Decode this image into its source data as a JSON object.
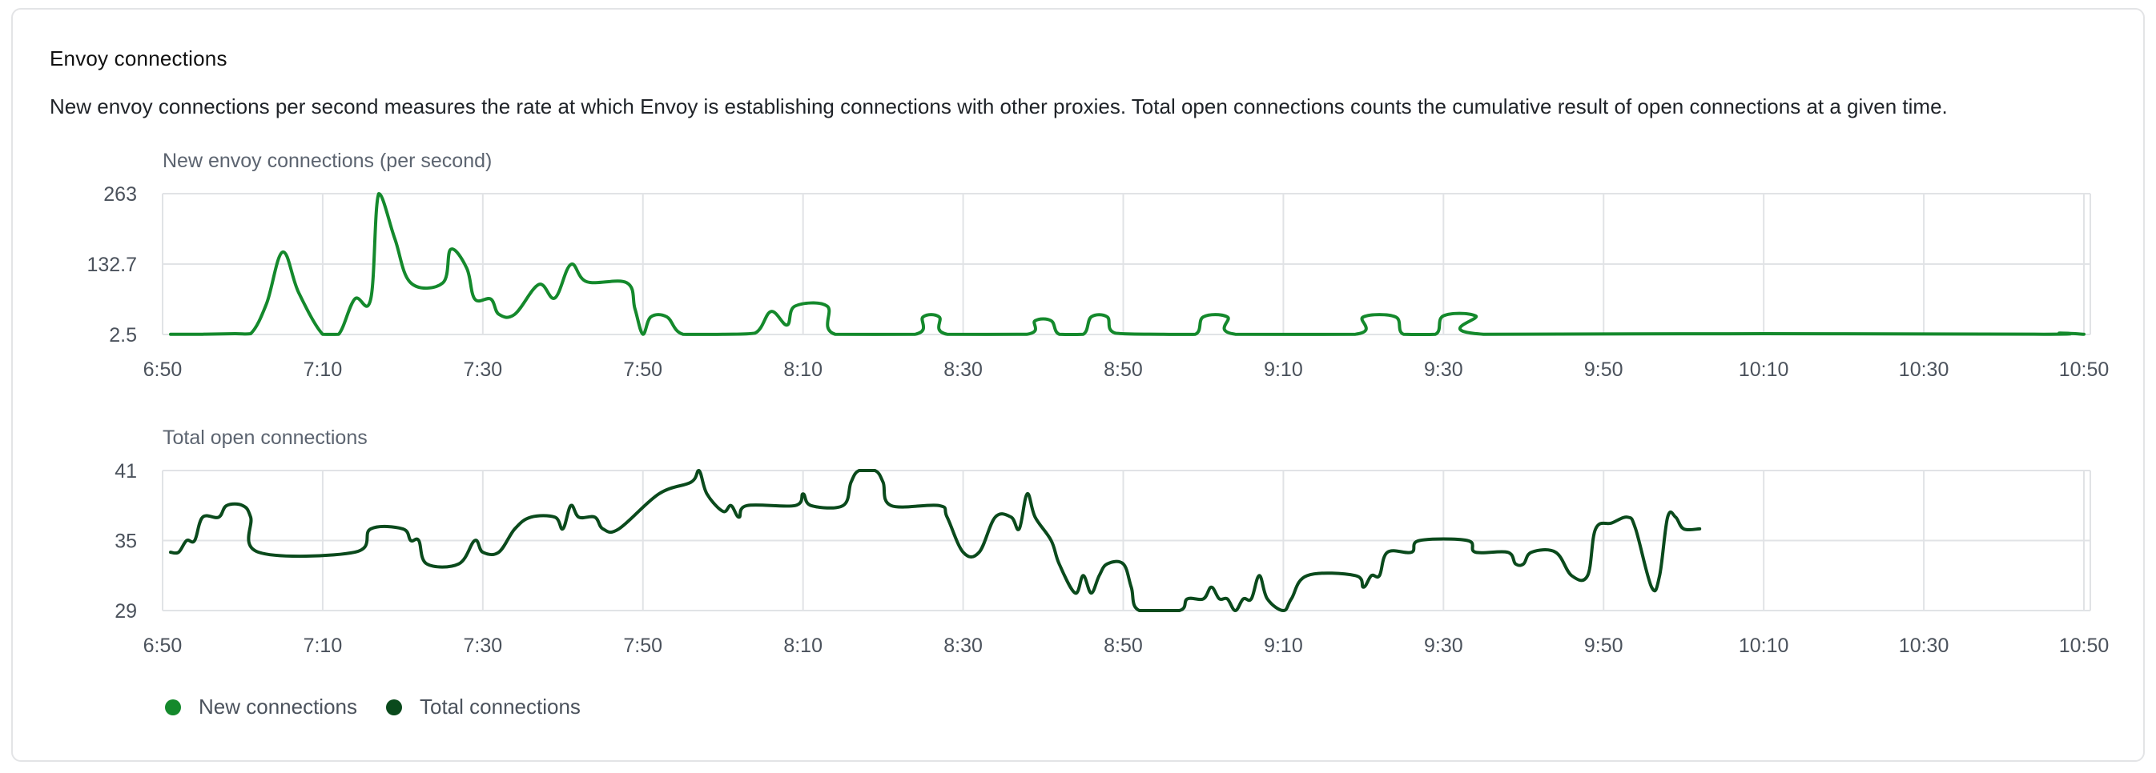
{
  "card": {
    "title": "Envoy connections",
    "description": "New envoy connections per second measures the rate at which Envoy is establishing connections with other proxies. Total open connections counts the cumulative result of open connections at a given time."
  },
  "colors": {
    "new": "#14892c",
    "total": "#0a4a1c",
    "grid": "#e1e3e6"
  },
  "legend": [
    {
      "label": "New connections",
      "color": "#14892c"
    },
    {
      "label": "Total connections",
      "color": "#0a4a1c"
    }
  ],
  "chart_data": [
    {
      "type": "line",
      "title": "New envoy connections (per second)",
      "series_color": "#14892c",
      "xlabel": "",
      "ylabel": "",
      "xlim": [
        "6:50",
        "10:50"
      ],
      "x_ticks": [
        "6:50",
        "7:10",
        "7:30",
        "7:50",
        "8:10",
        "8:30",
        "8:50",
        "9:10",
        "9:30",
        "9:50",
        "10:10",
        "10:30",
        "10:50"
      ],
      "y_ticks": [
        "2.5",
        "132.7",
        "263"
      ],
      "ylim": [
        2.5,
        263
      ],
      "grid": true,
      "points": [
        [
          "6:51",
          3
        ],
        [
          "6:55",
          3
        ],
        [
          "6:59",
          4
        ],
        [
          "7:01",
          4
        ],
        [
          "7:03",
          60
        ],
        [
          "7:05",
          155
        ],
        [
          "7:07",
          80
        ],
        [
          "7:10",
          3
        ],
        [
          "7:12",
          3
        ],
        [
          "7:14",
          68
        ],
        [
          "7:16",
          68
        ],
        [
          "7:17",
          263
        ],
        [
          "7:19",
          180
        ],
        [
          "7:21",
          98
        ],
        [
          "7:25",
          98
        ],
        [
          "7:26",
          160
        ],
        [
          "7:28",
          125
        ],
        [
          "7:29",
          68
        ],
        [
          "7:31",
          68
        ],
        [
          "7:32",
          40
        ],
        [
          "7:34",
          40
        ],
        [
          "7:37",
          95
        ],
        [
          "7:39",
          70
        ],
        [
          "7:41",
          132
        ],
        [
          "7:43",
          100
        ],
        [
          "7:48",
          98
        ],
        [
          "7:49",
          50
        ],
        [
          "7:50",
          3
        ],
        [
          "7:51",
          35
        ],
        [
          "7:53",
          35
        ],
        [
          "7:55",
          3
        ],
        [
          "8:00",
          3
        ],
        [
          "8:04",
          5
        ],
        [
          "8:06",
          45
        ],
        [
          "8:08",
          20
        ],
        [
          "8:09",
          55
        ],
        [
          "8:13",
          55
        ],
        [
          "8:14",
          3
        ],
        [
          "8:24",
          3
        ],
        [
          "8:25",
          35
        ],
        [
          "8:27",
          35
        ],
        [
          "8:28",
          3
        ],
        [
          "8:38",
          3
        ],
        [
          "8:39",
          28
        ],
        [
          "8:41",
          28
        ],
        [
          "8:42",
          3
        ],
        [
          "8:45",
          3
        ],
        [
          "8:46",
          35
        ],
        [
          "8:48",
          35
        ],
        [
          "8:49",
          5
        ],
        [
          "8:55",
          3
        ],
        [
          "8:59",
          3
        ],
        [
          "9:00",
          35
        ],
        [
          "9:03",
          35
        ],
        [
          "9:04",
          3
        ],
        [
          "9:19",
          3
        ],
        [
          "9:20",
          35
        ],
        [
          "9:24",
          35
        ],
        [
          "9:25",
          3
        ],
        [
          "9:29",
          3
        ],
        [
          "9:30",
          37
        ],
        [
          "9:34",
          37
        ],
        [
          "9:35",
          3
        ],
        [
          "10:10",
          4
        ],
        [
          "10:45",
          3
        ],
        [
          "10:47",
          5
        ],
        [
          "10:50",
          3
        ]
      ]
    },
    {
      "type": "line",
      "title": "Total open connections",
      "series_color": "#0a4a1c",
      "xlabel": "",
      "ylabel": "",
      "xlim": [
        "6:50",
        "10:50"
      ],
      "x_ticks": [
        "6:50",
        "7:10",
        "7:30",
        "7:50",
        "8:10",
        "8:30",
        "8:50",
        "9:10",
        "9:30",
        "9:50",
        "10:10",
        "10:30",
        "10:50"
      ],
      "y_ticks": [
        "29",
        "35",
        "41"
      ],
      "ylim": [
        29,
        41
      ],
      "grid": true,
      "points": [
        [
          "6:51",
          34
        ],
        [
          "6:52",
          34
        ],
        [
          "6:53",
          35
        ],
        [
          "6:54",
          35
        ],
        [
          "6:55",
          37
        ],
        [
          "6:57",
          37
        ],
        [
          "6:58",
          38
        ],
        [
          "7:00",
          38
        ],
        [
          "7:01",
          37
        ],
        [
          "7:02",
          34
        ],
        [
          "7:14",
          34
        ],
        [
          "7:16",
          36
        ],
        [
          "7:20",
          36
        ],
        [
          "7:21",
          35
        ],
        [
          "7:22",
          35
        ],
        [
          "7:23",
          33
        ],
        [
          "7:27",
          33
        ],
        [
          "7:29",
          35
        ],
        [
          "7:30",
          34
        ],
        [
          "7:32",
          34
        ],
        [
          "7:34",
          36
        ],
        [
          "7:36",
          37
        ],
        [
          "7:39",
          37
        ],
        [
          "7:40",
          36
        ],
        [
          "7:41",
          38
        ],
        [
          "7:42",
          37
        ],
        [
          "7:44",
          37
        ],
        [
          "7:45",
          36
        ],
        [
          "7:47",
          36
        ],
        [
          "7:52",
          39
        ],
        [
          "7:56",
          40
        ],
        [
          "7:57",
          41
        ],
        [
          "7:58",
          39
        ],
        [
          "8:00",
          37.5
        ],
        [
          "8:01",
          38
        ],
        [
          "8:02",
          37
        ],
        [
          "8:03",
          38
        ],
        [
          "8:09",
          38
        ],
        [
          "8:10",
          39
        ],
        [
          "8:11",
          38
        ],
        [
          "8:15",
          38
        ],
        [
          "8:16",
          40
        ],
        [
          "8:17",
          41
        ],
        [
          "8:19",
          41
        ],
        [
          "8:20",
          40
        ],
        [
          "8:21",
          38
        ],
        [
          "8:27",
          38
        ],
        [
          "8:28",
          37
        ],
        [
          "8:30",
          34
        ],
        [
          "8:32",
          34
        ],
        [
          "8:34",
          37
        ],
        [
          "8:36",
          37
        ],
        [
          "8:37",
          36
        ],
        [
          "8:38",
          39
        ],
        [
          "8:39",
          37
        ],
        [
          "8:41",
          35
        ],
        [
          "8:42",
          33
        ],
        [
          "8:44",
          30.5
        ],
        [
          "8:45",
          32
        ],
        [
          "8:46",
          30.5
        ],
        [
          "8:47",
          32
        ],
        [
          "8:48",
          33
        ],
        [
          "8:50",
          33
        ],
        [
          "8:51",
          31
        ],
        [
          "8:52",
          29
        ],
        [
          "8:57",
          29
        ],
        [
          "8:58",
          30
        ],
        [
          "9:00",
          30
        ],
        [
          "9:01",
          31
        ],
        [
          "9:02",
          30
        ],
        [
          "9:03",
          30
        ],
        [
          "9:04",
          29
        ],
        [
          "9:05",
          30
        ],
        [
          "9:06",
          30
        ],
        [
          "9:07",
          32
        ],
        [
          "9:08",
          30
        ],
        [
          "9:10",
          29
        ],
        [
          "9:11",
          30
        ],
        [
          "9:13",
          32
        ],
        [
          "9:19",
          32
        ],
        [
          "9:20",
          31
        ],
        [
          "9:21",
          32
        ],
        [
          "9:22",
          32
        ],
        [
          "9:23",
          34
        ],
        [
          "9:26",
          34
        ],
        [
          "9:27",
          35
        ],
        [
          "9:33",
          35
        ],
        [
          "9:34",
          34
        ],
        [
          "9:38",
          34
        ],
        [
          "9:39",
          33
        ],
        [
          "9:40",
          33
        ],
        [
          "9:41",
          34
        ],
        [
          "9:44",
          34
        ],
        [
          "9:46",
          32
        ],
        [
          "9:48",
          32
        ],
        [
          "9:49",
          36
        ],
        [
          "9:51",
          36.5
        ],
        [
          "9:53",
          37
        ],
        [
          "9:54",
          36
        ],
        [
          "9:56",
          31
        ],
        [
          "9:57",
          32
        ],
        [
          "9:58",
          37
        ],
        [
          "9:59",
          37
        ],
        [
          "10:00",
          36
        ],
        [
          "10:02",
          36
        ]
      ]
    }
  ]
}
